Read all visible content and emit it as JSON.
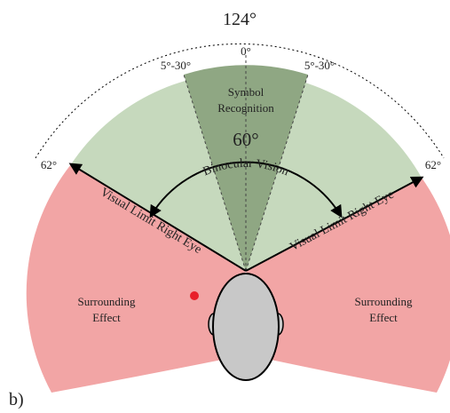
{
  "diagram": {
    "total_angle": "124°",
    "center_angle": "0°",
    "left_symbol_angle": "5°-30°",
    "right_symbol_angle": "5°-30°",
    "symbol_recognition": [
      "Symbol",
      "Recognition"
    ],
    "binocular_angle": "60°",
    "binocular_label": "Binocular Vision",
    "left_limit_angle": "62°",
    "right_limit_angle": "62°",
    "left_limit_label": "Visual Limit Right Eye",
    "right_limit_label": "Visual Limit Right Eye",
    "left_surrounding": [
      "Surrounding",
      "Effect"
    ],
    "right_surrounding": [
      "Surrounding",
      "Effect"
    ],
    "panel_label": "b)"
  }
}
